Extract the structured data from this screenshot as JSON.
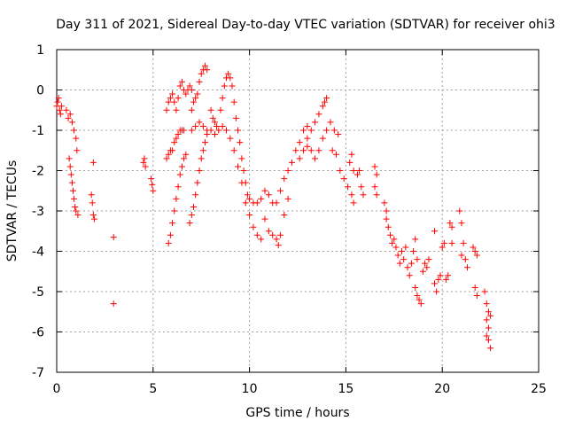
{
  "chart_data": {
    "type": "scatter",
    "title": "Day 311 of 2021, Sidereal Day-to-day VTEC variation (SDTVAR) for receiver ohi3",
    "xlabel": "GPS time / hours",
    "ylabel": "SDTVAR / TECUs",
    "xlim": [
      0,
      25
    ],
    "ylim": [
      -7,
      1
    ],
    "xticks": [
      0,
      5,
      10,
      15,
      20,
      25
    ],
    "yticks": [
      1,
      0,
      -1,
      -2,
      -3,
      -4,
      -5,
      -6,
      -7
    ],
    "xtick_labels": [
      "0",
      "5",
      "10",
      "15",
      "20",
      "25"
    ],
    "ytick_labels": [
      "1",
      "0",
      "-1",
      "-2",
      "-3",
      "-4",
      "-5",
      "-6",
      "-7"
    ],
    "grid": true,
    "marker": "+",
    "color": "#ff0000",
    "series": [
      {
        "name": "ohi3",
        "points": [
          [
            0.0,
            -0.4
          ],
          [
            0.05,
            -0.3
          ],
          [
            0.1,
            -0.2
          ],
          [
            0.15,
            -0.5
          ],
          [
            0.2,
            -0.6
          ],
          [
            0.25,
            -0.4
          ],
          [
            0.5,
            -0.5
          ],
          [
            0.6,
            -0.7
          ],
          [
            0.7,
            -0.6
          ],
          [
            0.8,
            -0.8
          ],
          [
            0.9,
            -1.0
          ],
          [
            1.0,
            -1.2
          ],
          [
            1.05,
            -1.5
          ],
          [
            0.65,
            -1.7
          ],
          [
            0.7,
            -1.9
          ],
          [
            0.75,
            -2.1
          ],
          [
            0.8,
            -2.3
          ],
          [
            0.85,
            -2.5
          ],
          [
            0.9,
            -2.7
          ],
          [
            0.95,
            -2.9
          ],
          [
            1.0,
            -3.0
          ],
          [
            1.1,
            -3.1
          ],
          [
            1.9,
            -1.8
          ],
          [
            1.9,
            -3.1
          ],
          [
            1.95,
            -3.2
          ],
          [
            1.8,
            -2.6
          ],
          [
            1.85,
            -2.8
          ],
          [
            2.95,
            -3.65
          ],
          [
            2.95,
            -5.3
          ],
          [
            4.5,
            -1.8
          ],
          [
            4.55,
            -1.7
          ],
          [
            4.6,
            -1.9
          ],
          [
            4.9,
            -2.2
          ],
          [
            4.95,
            -2.35
          ],
          [
            5.0,
            -2.5
          ],
          [
            5.8,
            -3.8
          ],
          [
            5.9,
            -3.6
          ],
          [
            6.0,
            -3.3
          ],
          [
            6.1,
            -3.0
          ],
          [
            6.2,
            -2.7
          ],
          [
            6.3,
            -2.4
          ],
          [
            6.4,
            -2.1
          ],
          [
            6.5,
            -1.9
          ],
          [
            6.6,
            -1.7
          ],
          [
            6.7,
            -1.6
          ],
          [
            5.7,
            -1.7
          ],
          [
            5.8,
            -1.6
          ],
          [
            5.9,
            -1.5
          ],
          [
            6.0,
            -1.5
          ],
          [
            6.1,
            -1.3
          ],
          [
            6.2,
            -1.2
          ],
          [
            6.3,
            -1.1
          ],
          [
            6.4,
            -1.0
          ],
          [
            6.5,
            -1.0
          ],
          [
            6.6,
            -1.0
          ],
          [
            5.7,
            -0.5
          ],
          [
            5.8,
            -0.3
          ],
          [
            5.9,
            -0.2
          ],
          [
            6.0,
            -0.1
          ],
          [
            6.1,
            -0.3
          ],
          [
            6.2,
            -0.5
          ],
          [
            6.3,
            -0.2
          ],
          [
            6.4,
            0.1
          ],
          [
            6.5,
            0.2
          ],
          [
            6.6,
            0.0
          ],
          [
            6.7,
            -0.1
          ],
          [
            6.8,
            0.0
          ],
          [
            6.9,
            0.1
          ],
          [
            7.0,
            0.0
          ],
          [
            7.0,
            -0.5
          ],
          [
            7.1,
            -0.3
          ],
          [
            7.2,
            -0.2
          ],
          [
            7.3,
            -0.1
          ],
          [
            7.4,
            0.2
          ],
          [
            7.5,
            0.4
          ],
          [
            7.6,
            0.5
          ],
          [
            7.7,
            0.6
          ],
          [
            7.8,
            0.5
          ],
          [
            6.9,
            -3.3
          ],
          [
            7.0,
            -3.1
          ],
          [
            7.1,
            -2.9
          ],
          [
            7.2,
            -2.6
          ],
          [
            7.3,
            -2.3
          ],
          [
            7.4,
            -2.0
          ],
          [
            7.5,
            -1.7
          ],
          [
            7.6,
            -1.5
          ],
          [
            7.7,
            -1.3
          ],
          [
            7.8,
            -1.1
          ],
          [
            7.0,
            -1.0
          ],
          [
            7.2,
            -0.9
          ],
          [
            7.4,
            -0.8
          ],
          [
            7.6,
            -0.9
          ],
          [
            7.8,
            -1.0
          ],
          [
            8.0,
            -1.0
          ],
          [
            8.2,
            -1.1
          ],
          [
            8.4,
            -1.0
          ],
          [
            8.6,
            -0.9
          ],
          [
            8.0,
            -0.5
          ],
          [
            8.1,
            -0.7
          ],
          [
            8.2,
            -0.8
          ],
          [
            8.3,
            -0.9
          ],
          [
            8.5,
            -0.5
          ],
          [
            8.6,
            -0.2
          ],
          [
            8.7,
            0.1
          ],
          [
            8.8,
            0.3
          ],
          [
            8.9,
            0.4
          ],
          [
            9.0,
            0.3
          ],
          [
            9.1,
            0.1
          ],
          [
            9.2,
            -0.3
          ],
          [
            9.3,
            -0.7
          ],
          [
            9.4,
            -1.0
          ],
          [
            9.5,
            -1.3
          ],
          [
            9.6,
            -1.7
          ],
          [
            9.7,
            -2.0
          ],
          [
            9.8,
            -2.3
          ],
          [
            9.9,
            -2.6
          ],
          [
            8.8,
            -1.0
          ],
          [
            9.0,
            -1.2
          ],
          [
            9.2,
            -1.5
          ],
          [
            9.4,
            -1.9
          ],
          [
            9.6,
            -2.3
          ],
          [
            9.8,
            -2.8
          ],
          [
            10.0,
            -3.1
          ],
          [
            10.2,
            -3.4
          ],
          [
            10.4,
            -3.6
          ],
          [
            10.6,
            -3.7
          ],
          [
            10.0,
            -2.7
          ],
          [
            10.2,
            -2.8
          ],
          [
            10.4,
            -2.8
          ],
          [
            10.6,
            -2.7
          ],
          [
            10.8,
            -2.5
          ],
          [
            11.0,
            -2.6
          ],
          [
            11.2,
            -2.8
          ],
          [
            10.8,
            -3.2
          ],
          [
            11.0,
            -3.5
          ],
          [
            11.2,
            -3.6
          ],
          [
            11.4,
            -3.7
          ],
          [
            11.5,
            -3.85
          ],
          [
            11.6,
            -3.6
          ],
          [
            11.8,
            -3.1
          ],
          [
            12.0,
            -2.7
          ],
          [
            11.4,
            -2.8
          ],
          [
            11.6,
            -2.5
          ],
          [
            11.8,
            -2.2
          ],
          [
            12.0,
            -2.0
          ],
          [
            12.2,
            -1.8
          ],
          [
            12.4,
            -1.5
          ],
          [
            12.6,
            -1.3
          ],
          [
            12.8,
            -1.0
          ],
          [
            13.0,
            -0.9
          ],
          [
            12.6,
            -1.7
          ],
          [
            12.8,
            -1.5
          ],
          [
            13.0,
            -1.2
          ],
          [
            13.2,
            -1.0
          ],
          [
            13.4,
            -0.8
          ],
          [
            13.6,
            -0.6
          ],
          [
            13.8,
            -0.4
          ],
          [
            13.9,
            -0.3
          ],
          [
            14.0,
            -0.2
          ],
          [
            13.0,
            -1.4
          ],
          [
            13.2,
            -1.5
          ],
          [
            13.4,
            -1.7
          ],
          [
            13.6,
            -1.5
          ],
          [
            13.8,
            -1.2
          ],
          [
            14.0,
            -1.0
          ],
          [
            14.2,
            -0.8
          ],
          [
            14.4,
            -1.0
          ],
          [
            14.6,
            -1.1
          ],
          [
            14.3,
            -1.5
          ],
          [
            14.5,
            -1.6
          ],
          [
            14.7,
            -2.0
          ],
          [
            14.9,
            -2.2
          ],
          [
            15.1,
            -2.4
          ],
          [
            15.3,
            -2.6
          ],
          [
            15.4,
            -2.8
          ],
          [
            15.2,
            -1.8
          ],
          [
            15.4,
            -2.0
          ],
          [
            15.6,
            -2.1
          ],
          [
            15.8,
            -2.4
          ],
          [
            15.9,
            -2.6
          ],
          [
            15.7,
            -2.0
          ],
          [
            15.3,
            -1.6
          ],
          [
            16.5,
            -1.9
          ],
          [
            16.6,
            -2.1
          ],
          [
            16.5,
            -2.4
          ],
          [
            16.6,
            -2.6
          ],
          [
            17.0,
            -2.8
          ],
          [
            17.1,
            -3.0
          ],
          [
            17.1,
            -3.2
          ],
          [
            17.2,
            -3.4
          ],
          [
            17.3,
            -3.6
          ],
          [
            17.4,
            -3.8
          ],
          [
            17.5,
            -3.7
          ],
          [
            17.6,
            -3.9
          ],
          [
            17.7,
            -4.1
          ],
          [
            17.8,
            -4.3
          ],
          [
            17.9,
            -4.0
          ],
          [
            18.0,
            -4.2
          ],
          [
            18.1,
            -3.9
          ],
          [
            18.2,
            -4.4
          ],
          [
            18.3,
            -4.6
          ],
          [
            18.4,
            -4.3
          ],
          [
            18.5,
            -4.0
          ],
          [
            18.6,
            -3.7
          ],
          [
            18.7,
            -4.2
          ],
          [
            18.6,
            -4.9
          ],
          [
            18.7,
            -5.1
          ],
          [
            18.8,
            -5.2
          ],
          [
            18.9,
            -5.3
          ],
          [
            19.0,
            -4.5
          ],
          [
            19.1,
            -4.3
          ],
          [
            19.2,
            -4.4
          ],
          [
            19.3,
            -4.2
          ],
          [
            19.6,
            -4.8
          ],
          [
            19.7,
            -5.0
          ],
          [
            19.8,
            -4.7
          ],
          [
            19.9,
            -4.6
          ],
          [
            20.0,
            -3.9
          ],
          [
            20.1,
            -3.8
          ],
          [
            19.6,
            -3.5
          ],
          [
            20.2,
            -4.7
          ],
          [
            20.3,
            -4.6
          ],
          [
            20.4,
            -3.3
          ],
          [
            20.5,
            -3.4
          ],
          [
            20.5,
            -3.8
          ],
          [
            20.9,
            -3.0
          ],
          [
            21.0,
            -3.3
          ],
          [
            21.1,
            -3.8
          ],
          [
            21.0,
            -4.1
          ],
          [
            21.2,
            -4.2
          ],
          [
            21.3,
            -4.4
          ],
          [
            21.6,
            -3.9
          ],
          [
            21.7,
            -4.0
          ],
          [
            21.8,
            -4.1
          ],
          [
            21.7,
            -4.9
          ],
          [
            21.8,
            -5.1
          ],
          [
            22.2,
            -5.0
          ],
          [
            22.3,
            -5.3
          ],
          [
            22.4,
            -5.5
          ],
          [
            22.3,
            -5.7
          ],
          [
            22.4,
            -5.9
          ],
          [
            22.3,
            -6.1
          ],
          [
            22.4,
            -6.2
          ],
          [
            22.5,
            -6.4
          ],
          [
            22.5,
            -5.6
          ]
        ]
      }
    ]
  }
}
